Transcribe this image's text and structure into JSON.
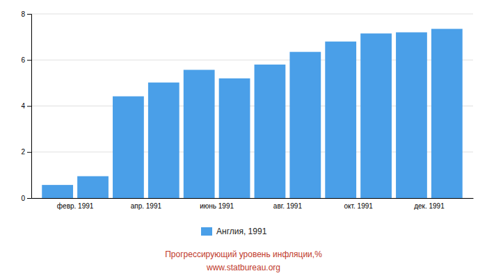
{
  "chart_data": {
    "type": "bar",
    "title": "Прогрессирующий уровень инфляции,%",
    "subtitle": "www.statbureau.org",
    "categories": [
      null,
      "февр. 1991",
      null,
      "апр. 1991",
      null,
      "июнь 1991",
      null,
      "авг. 1991",
      null,
      "окт. 1991",
      null,
      "дек. 1991"
    ],
    "series": [
      {
        "name": "Англия, 1991",
        "color": "#4a9fe8",
        "values": [
          0.57,
          0.95,
          4.42,
          5.02,
          5.57,
          5.2,
          5.8,
          6.35,
          6.8,
          7.15,
          7.2,
          7.35
        ]
      }
    ],
    "ylim": [
      0,
      8
    ],
    "yticks": [
      0,
      2,
      4,
      6,
      8
    ],
    "grid": true,
    "legend": "bottom"
  }
}
